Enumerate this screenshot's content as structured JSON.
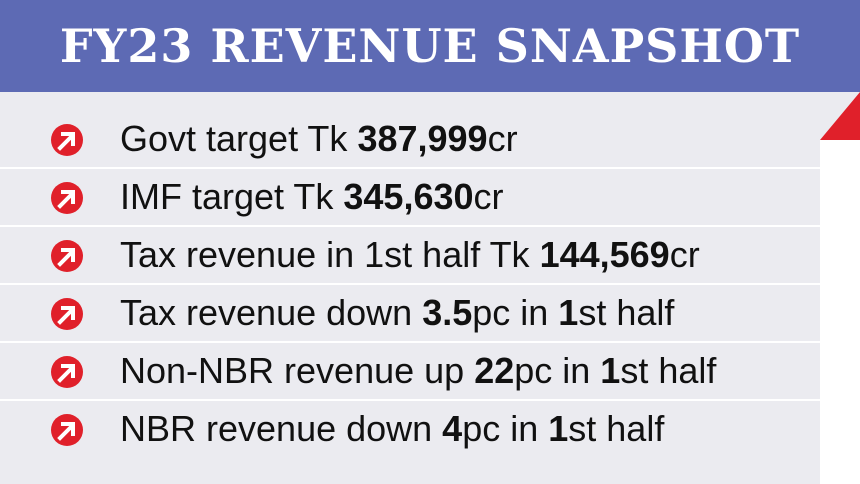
{
  "title": "FY23 REVENUE SNAPSHOT",
  "colors": {
    "banner": "#5d6ab4",
    "accent": "#e0202a",
    "card": "#ebebf0"
  },
  "icon": "arrow-up-right-circle-icon",
  "items": [
    {
      "prefix": "Govt target Tk ",
      "bold1": "387,999",
      "mid": "cr",
      "bold2": "",
      "suffix": ""
    },
    {
      "prefix": "IMF target Tk ",
      "bold1": "345,630",
      "mid": "cr",
      "bold2": "",
      "suffix": ""
    },
    {
      "prefix": "Tax revenue in 1st half Tk ",
      "bold1": "144,569",
      "mid": "cr",
      "bold2": "",
      "suffix": ""
    },
    {
      "prefix": "Tax revenue down ",
      "bold1": "3.5",
      "mid": "pc in ",
      "bold2": "1",
      "suffix": "st half"
    },
    {
      "prefix": "Non-NBR revenue up ",
      "bold1": "22",
      "mid": "pc in ",
      "bold2": "1",
      "suffix": "st half"
    },
    {
      "prefix": "NBR revenue down ",
      "bold1": "4",
      "mid": "pc in ",
      "bold2": "1",
      "suffix": "st half"
    }
  ]
}
